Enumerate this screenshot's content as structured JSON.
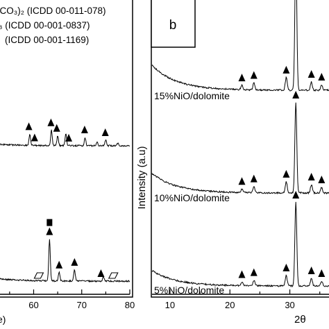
{
  "chart_data": [
    {
      "panel_label": "",
      "type": "line",
      "xlabel": "e)",
      "ylabel": "",
      "xlim": [
        53,
        80
      ],
      "x_ticks": [
        60,
        70,
        80
      ],
      "legend": [
        "(CO₃)₂ (ICDD 00-011-078)",
        "₃ (ICDD 00-001-0837)",
        "(ICDD 00-001-1169)"
      ],
      "series": [
        {
          "peaks": [
            {
              "x": 59.2,
              "h": 16
            },
            {
              "x": 63.7,
              "h": 22
            },
            {
              "x": 65.0,
              "h": 14
            },
            {
              "x": 66.7,
              "h": 18
            },
            {
              "x": 70.7,
              "h": 12
            },
            {
              "x": 73.2,
              "h": 5
            },
            {
              "x": 75.0,
              "h": 8
            },
            {
              "x": 77.5,
              "h": 4
            }
          ],
          "markers": [
            {
              "x": 59.0,
              "symbol": "triangle"
            },
            {
              "x": 60.2,
              "symbol": "triangle"
            },
            {
              "x": 63.6,
              "symbol": "triangle"
            },
            {
              "x": 64.8,
              "symbol": "triangle"
            },
            {
              "x": 67.3,
              "symbol": "triangle"
            },
            {
              "x": 70.6,
              "symbol": "triangle"
            },
            {
              "x": 74.9,
              "symbol": "triangle"
            }
          ]
        },
        {
          "peaks": [
            {
              "x": 63.3,
              "h": 60
            },
            {
              "x": 65.3,
              "h": 12
            },
            {
              "x": 68.5,
              "h": 16
            },
            {
              "x": 74.5,
              "h": 6
            }
          ],
          "markers": [
            {
              "x": 63.3,
              "symbol": "triangle"
            },
            {
              "x": 63.3,
              "symbol": "square"
            },
            {
              "x": 65.3,
              "symbol": "triangle"
            },
            {
              "x": 68.5,
              "symbol": "triangle"
            },
            {
              "x": 74.0,
              "symbol": "triangle"
            },
            {
              "x": 61.0,
              "symbol": "parallelogram"
            },
            {
              "x": 76.5,
              "symbol": "parallelogram"
            }
          ]
        }
      ]
    },
    {
      "panel_label": "b",
      "type": "line",
      "xlabel": "2θ",
      "ylabel": "Intensity (a.u)",
      "xlim": [
        7,
        37
      ],
      "x_ticks": [
        10,
        20,
        30
      ],
      "series": [
        {
          "name": "15%NiO/dolomite",
          "peaks": [
            {
              "x": 22.0,
              "h": 6
            },
            {
              "x": 24.0,
              "h": 10
            },
            {
              "x": 29.4,
              "h": 18
            },
            {
              "x": 31.0,
              "h": 200
            },
            {
              "x": 33.6,
              "h": 12
            },
            {
              "x": 35.3,
              "h": 8
            }
          ],
          "markers": [
            {
              "x": 22.0,
              "symbol": "triangle"
            },
            {
              "x": 24.0,
              "symbol": "triangle"
            },
            {
              "x": 29.4,
              "symbol": "triangle"
            },
            {
              "x": 31.0,
              "symbol": "triangle"
            },
            {
              "x": 33.6,
              "symbol": "triangle"
            },
            {
              "x": 35.3,
              "symbol": "triangle"
            }
          ]
        },
        {
          "name": "10%NiO/dolomite",
          "peaks": [
            {
              "x": 22.0,
              "h": 5
            },
            {
              "x": 24.0,
              "h": 9
            },
            {
              "x": 29.4,
              "h": 16
            },
            {
              "x": 31.0,
              "h": 130
            },
            {
              "x": 33.6,
              "h": 12
            },
            {
              "x": 35.3,
              "h": 8
            }
          ],
          "markers": [
            {
              "x": 22.0,
              "symbol": "triangle"
            },
            {
              "x": 24.0,
              "symbol": "triangle"
            },
            {
              "x": 29.4,
              "symbol": "triangle"
            },
            {
              "x": 31.0,
              "symbol": "triangle"
            },
            {
              "x": 33.6,
              "symbol": "triangle"
            },
            {
              "x": 35.3,
              "symbol": "triangle"
            }
          ]
        },
        {
          "name": "5%NiO/dolomite",
          "peaks": [
            {
              "x": 22.0,
              "h": 5
            },
            {
              "x": 24.0,
              "h": 8
            },
            {
              "x": 29.4,
              "h": 15
            },
            {
              "x": 31.0,
              "h": 120
            },
            {
              "x": 33.6,
              "h": 11
            },
            {
              "x": 35.3,
              "h": 7
            }
          ],
          "markers": [
            {
              "x": 22.0,
              "symbol": "triangle"
            },
            {
              "x": 24.0,
              "symbol": "triangle"
            },
            {
              "x": 29.4,
              "symbol": "triangle"
            },
            {
              "x": 31.0,
              "symbol": "triangle"
            },
            {
              "x": 33.6,
              "symbol": "triangle"
            },
            {
              "x": 35.3,
              "symbol": "triangle"
            }
          ]
        }
      ]
    }
  ]
}
